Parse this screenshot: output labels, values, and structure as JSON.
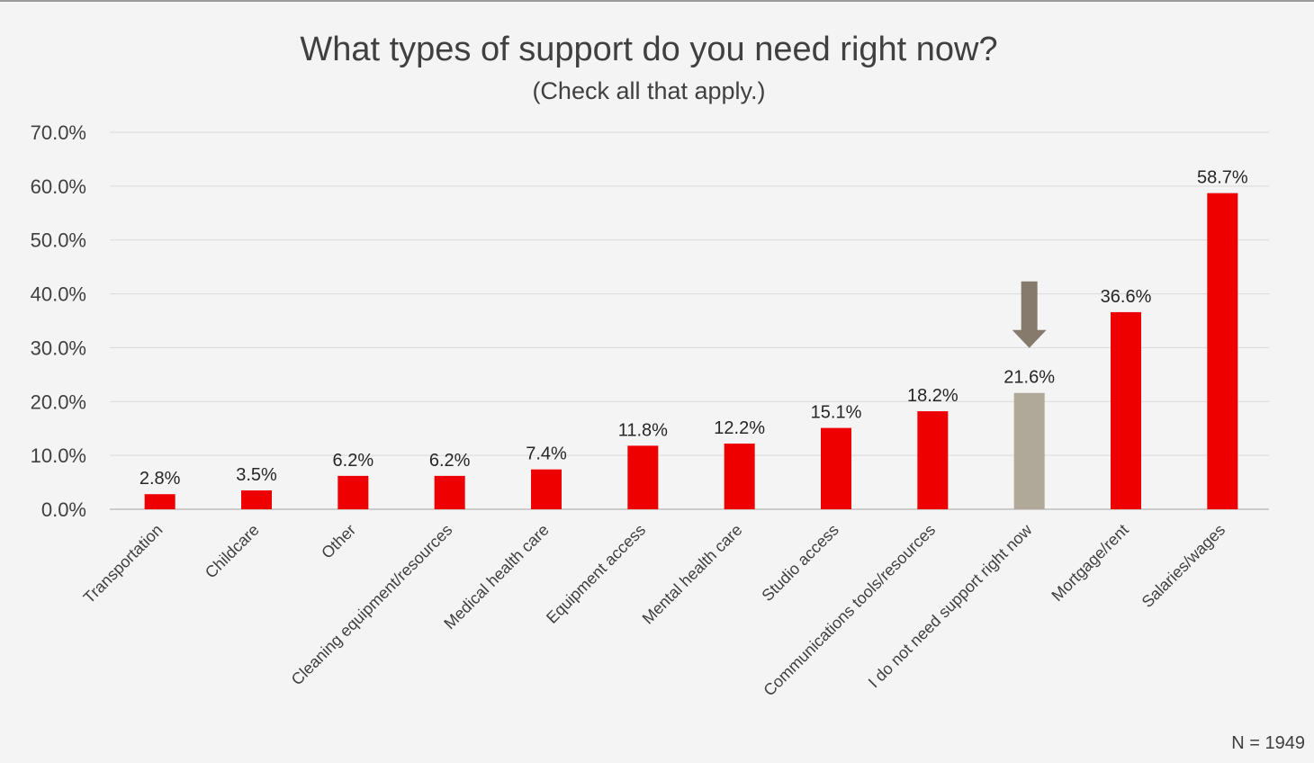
{
  "chart_data": {
    "type": "bar",
    "title": "What types of support do you need right now?",
    "subtitle": "(Check all that apply.)",
    "categories": [
      "Transportation",
      "Childcare",
      "Other",
      "Cleaning equipment/resources",
      "Medical health care",
      "Equipment access",
      "Mental health care",
      "Studio access",
      "Communications tools/resources",
      "I do not need support right now",
      "Mortgage/rent",
      "Salaries/wages"
    ],
    "values": [
      2.8,
      3.5,
      6.2,
      6.2,
      7.4,
      11.8,
      12.2,
      15.1,
      18.2,
      21.6,
      36.6,
      58.7
    ],
    "data_labels": [
      "2.8%",
      "3.5%",
      "6.2%",
      "6.2%",
      "7.4%",
      "11.8%",
      "12.2%",
      "15.1%",
      "18.2%",
      "21.6%",
      "36.6%",
      "58.7%"
    ],
    "yticks": [
      "0.0%",
      "10.0%",
      "20.0%",
      "30.0%",
      "40.0%",
      "50.0%",
      "60.0%",
      "70.0%"
    ],
    "ylim": [
      0,
      70
    ],
    "grid": true,
    "highlight_index": 9,
    "annotation": "down-arrow-over-highlighted-bar",
    "footnote": "N = 1949",
    "xlabel": "",
    "ylabel": ""
  },
  "colors": {
    "bar": "#ee0000",
    "highlight": "#b0a898",
    "arrow": "#857a6c",
    "grid": "#d9d9d9",
    "axis": "#bfbfbf"
  }
}
